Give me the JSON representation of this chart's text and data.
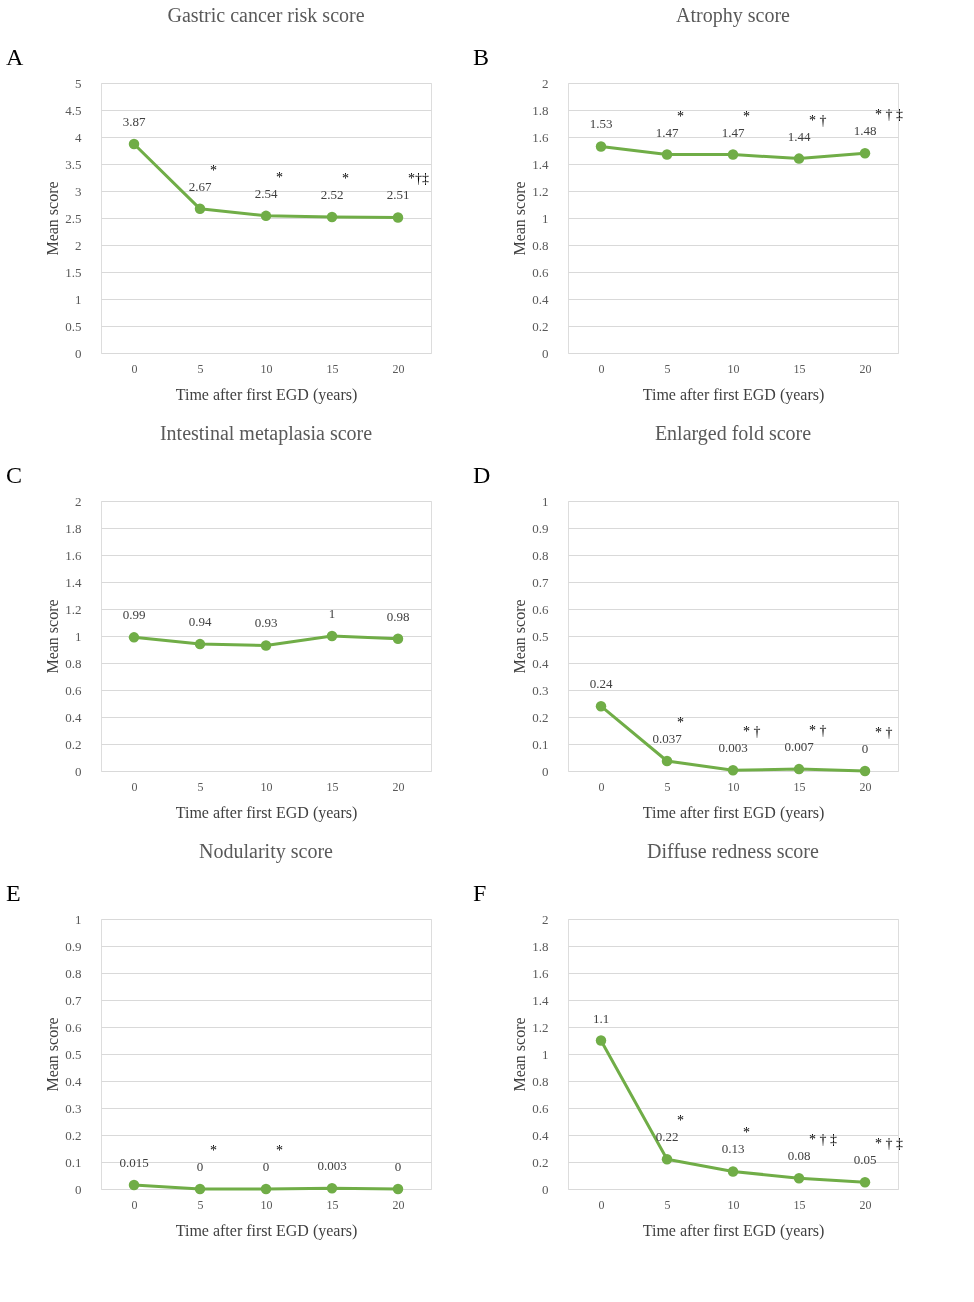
{
  "chart_data": [
    {
      "type": "line",
      "title": "Gastric cancer risk score",
      "xlabel": "Time after first EGD (years)",
      "ylabel": "Mean score",
      "categories": [
        "0",
        "5",
        "10",
        "15",
        "20"
      ],
      "series": [
        {
          "color": "#70ad47",
          "values": [
            3.87,
            2.67,
            2.54,
            2.52,
            2.51
          ]
        }
      ],
      "ylim": [
        0,
        5
      ],
      "yticks": [
        0,
        0.5,
        1,
        1.5,
        2,
        2.5,
        3,
        3.5,
        4,
        4.5,
        5
      ],
      "grid": "y",
      "marker": "circle",
      "line_style": "solid",
      "data_labels": true,
      "annotations": [
        "A",
        {
          "text": "*",
          "x": "5",
          "y": 2.67
        },
        {
          "text": "*",
          "x": "10",
          "y": 2.54
        },
        {
          "text": "*",
          "x": "15",
          "y": 2.52
        },
        {
          "text": "*†‡",
          "x": "20",
          "y": 2.51
        }
      ]
    },
    {
      "type": "line",
      "title": "Atrophy score",
      "xlabel": "Time after first EGD (years)",
      "ylabel": "Mean score",
      "categories": [
        "0",
        "5",
        "10",
        "15",
        "20"
      ],
      "series": [
        {
          "color": "#70ad47",
          "values": [
            1.53,
            1.47,
            1.47,
            1.44,
            1.48
          ]
        }
      ],
      "ylim": [
        0,
        2
      ],
      "yticks": [
        0,
        0.2,
        0.4,
        0.6,
        0.8,
        1,
        1.2,
        1.4,
        1.6,
        1.8,
        2
      ],
      "grid": "y",
      "marker": "circle",
      "line_style": "solid",
      "data_labels": true,
      "annotations": [
        "B",
        {
          "text": "*",
          "x": "5",
          "y": 1.47
        },
        {
          "text": "*",
          "x": "10",
          "y": 1.47
        },
        {
          "text": "* †",
          "x": "15",
          "y": 1.44
        },
        {
          "text": "* † ‡",
          "x": "20",
          "y": 1.48
        }
      ]
    },
    {
      "type": "line",
      "title": "Intestinal metaplasia score",
      "xlabel": "Time after first EGD (years)",
      "ylabel": "Mean score",
      "categories": [
        "0",
        "5",
        "10",
        "15",
        "20"
      ],
      "series": [
        {
          "color": "#70ad47",
          "values": [
            0.99,
            0.94,
            0.93,
            1,
            0.98
          ]
        }
      ],
      "ylim": [
        0,
        2
      ],
      "yticks": [
        0,
        0.2,
        0.4,
        0.6,
        0.8,
        1,
        1.2,
        1.4,
        1.6,
        1.8,
        2
      ],
      "grid": "y",
      "marker": "circle",
      "line_style": "solid",
      "data_labels": true,
      "annotations": [
        "C"
      ]
    },
    {
      "type": "line",
      "title": "Enlarged fold score",
      "xlabel": "Time after first EGD (years)",
      "ylabel": "Mean score",
      "categories": [
        "0",
        "5",
        "10",
        "15",
        "20"
      ],
      "series": [
        {
          "color": "#70ad47",
          "values": [
            0.24,
            0.037,
            0.003,
            0.007,
            0
          ]
        }
      ],
      "ylim": [
        0,
        1
      ],
      "yticks": [
        0,
        0.1,
        0.2,
        0.3,
        0.4,
        0.5,
        0.6,
        0.7,
        0.8,
        0.9,
        1
      ],
      "grid": "y",
      "marker": "circle",
      "line_style": "solid",
      "data_labels": true,
      "annotations": [
        "D",
        {
          "text": "*",
          "x": "5",
          "y": 0.037
        },
        {
          "text": "* †",
          "x": "10",
          "y": 0.003
        },
        {
          "text": "* †",
          "x": "15",
          "y": 0.007
        },
        {
          "text": "* †",
          "x": "20",
          "y": 0
        }
      ]
    },
    {
      "type": "line",
      "title": "Nodularity score",
      "xlabel": "Time after first EGD (years)",
      "ylabel": "Mean score",
      "categories": [
        "0",
        "5",
        "10",
        "15",
        "20"
      ],
      "series": [
        {
          "color": "#70ad47",
          "values": [
            0.015,
            0,
            0,
            0.003,
            0
          ]
        }
      ],
      "ylim": [
        0,
        1
      ],
      "yticks": [
        0,
        0.1,
        0.2,
        0.3,
        0.4,
        0.5,
        0.6,
        0.7,
        0.8,
        0.9,
        1
      ],
      "grid": "y",
      "marker": "circle",
      "line_style": "solid",
      "data_labels": true,
      "annotations": [
        "E",
        {
          "text": "*",
          "x": "5",
          "y": 0
        },
        {
          "text": "*",
          "x": "10",
          "y": 0
        }
      ]
    },
    {
      "type": "line",
      "title": "Diffuse redness score",
      "xlabel": "Time after first EGD (years)",
      "ylabel": "Mean score",
      "categories": [
        "0",
        "5",
        "10",
        "15",
        "20"
      ],
      "series": [
        {
          "color": "#70ad47",
          "values": [
            1.1,
            0.22,
            0.13,
            0.08,
            0.05
          ]
        }
      ],
      "ylim": [
        0,
        2
      ],
      "yticks": [
        0,
        0.2,
        0.4,
        0.6,
        0.8,
        1,
        1.2,
        1.4,
        1.6,
        1.8,
        2
      ],
      "grid": "y",
      "marker": "circle",
      "line_style": "solid",
      "data_labels": true,
      "annotations": [
        "F",
        {
          "text": "*",
          "x": "5",
          "y": 0.22
        },
        {
          "text": "*",
          "x": "10",
          "y": 0.13
        },
        {
          "text": "* † ‡",
          "x": "15",
          "y": 0.08
        },
        {
          "text": "* † ‡",
          "x": "20",
          "y": 0.05
        }
      ]
    }
  ]
}
